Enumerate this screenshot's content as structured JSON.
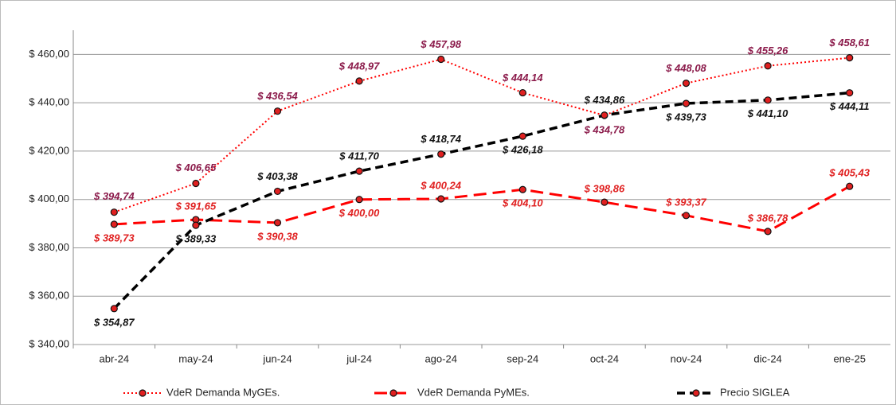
{
  "chart_data": {
    "type": "line",
    "categories": [
      "abr-24",
      "may-24",
      "jun-24",
      "jul-24",
      "ago-24",
      "sep-24",
      "oct-24",
      "nov-24",
      "dic-24",
      "ene-25"
    ],
    "ylim": [
      340,
      470
    ],
    "yticks": [
      {
        "value": 340,
        "label": "$ 340,00"
      },
      {
        "value": 360,
        "label": "$ 360,00"
      },
      {
        "value": 380,
        "label": "$ 380,00"
      },
      {
        "value": 400,
        "label": "$ 400,00"
      },
      {
        "value": 420,
        "label": "$ 420,00"
      },
      {
        "value": 440,
        "label": "$ 440,00"
      },
      {
        "value": 460,
        "label": "$ 460,00"
      }
    ],
    "grid": true,
    "legend": "bottom",
    "series": [
      {
        "name": "VdeR Demanda MyGEs.",
        "color": "#ff0000",
        "label_color": "#8b1a4a",
        "line_style": "dotted",
        "values": [
          394.74,
          406.65,
          436.54,
          448.97,
          457.98,
          444.14,
          434.78,
          448.08,
          455.26,
          458.61
        ],
        "value_labels": [
          "$ 394,74",
          "$ 406,65",
          "$ 436,54",
          "$ 448,97",
          "$ 457,98",
          "$ 444,14",
          "$ 434,78",
          "$ 448,08",
          "$ 455,26",
          "$ 458,61"
        ]
      },
      {
        "name": "VdeR Demanda PyMEs.",
        "color": "#ff0000",
        "label_color": "#e02020",
        "line_style": "dashed",
        "values": [
          389.73,
          391.65,
          390.38,
          400.0,
          400.24,
          404.1,
          398.86,
          393.37,
          386.78,
          405.43
        ],
        "value_labels": [
          "$ 389,73",
          "$ 391,65",
          "$ 390,38",
          "$ 400,00",
          "$ 400,24",
          "$ 404,10",
          "$ 398,86",
          "$ 393,37",
          "$ 386,78",
          "$ 405,43"
        ]
      },
      {
        "name": "Precio SIGLEA",
        "color": "#000000",
        "label_color": "#111111",
        "line_style": "short-dashed",
        "values": [
          354.87,
          389.33,
          403.38,
          411.7,
          418.74,
          426.18,
          434.86,
          439.73,
          441.1,
          444.11
        ],
        "value_labels": [
          "$ 354,87",
          "$ 389,33",
          "$ 403,38",
          "$ 411,70",
          "$ 418,74",
          "$ 426,18",
          "$ 434,86",
          "$ 439,73",
          "$ 441,10",
          "$ 444,11"
        ]
      }
    ]
  }
}
